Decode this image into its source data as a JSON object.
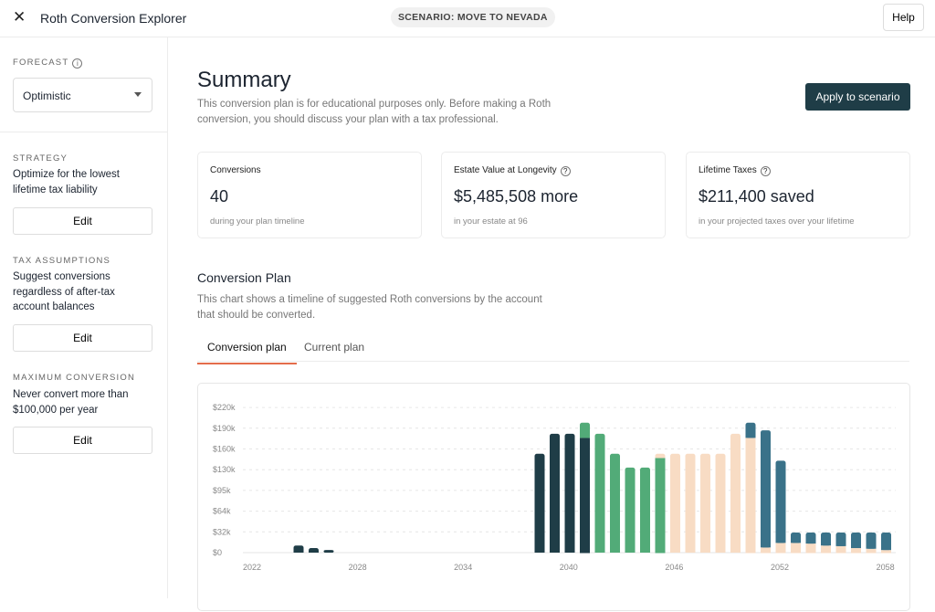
{
  "header": {
    "close_icon": "close-icon",
    "title": "Roth Conversion Explorer",
    "scenario": "SCENARIO: MOVE TO NEVADA",
    "help_label": "Help"
  },
  "sidebar": {
    "forecast_label": "FORECAST",
    "forecast_info_icon": "info-icon",
    "forecast_value": "Optimistic",
    "sections": [
      {
        "label": "STRATEGY",
        "text": "Optimize for the lowest lifetime tax liability",
        "button": "Edit"
      },
      {
        "label": "TAX ASSUMPTIONS",
        "text": "Suggest conversions regardless of after-tax account balances",
        "button": "Edit"
      },
      {
        "label": "MAXIMUM CONVERSION",
        "text": "Never convert more than $100,000 per year",
        "button": "Edit"
      }
    ]
  },
  "summary": {
    "title": "Summary",
    "description": "This conversion plan is for educational purposes only. Before making a Roth conversion, you should discuss your plan with a tax professional.",
    "apply_label": "Apply to scenario",
    "cards": [
      {
        "title": "Conversions",
        "value": "40",
        "sub": "during your plan timeline"
      },
      {
        "title": "Estate Value at Longevity",
        "value": "$5,485,508 more",
        "sub": "in your estate at 96"
      },
      {
        "title": "Lifetime Taxes",
        "value": "$211,400 saved",
        "sub": "in your projected taxes over your lifetime"
      }
    ]
  },
  "plan": {
    "title": "Conversion Plan",
    "description": "This chart shows a timeline of suggested Roth conversions by the account that should be converted.",
    "tabs": [
      {
        "label": "Conversion plan",
        "active": true
      },
      {
        "label": "Current plan",
        "active": false
      }
    ]
  },
  "chart_data": {
    "type": "bar",
    "stacked": true,
    "grid": true,
    "y_tick_labels": [
      "$0",
      "$32k",
      "$64k",
      "$95k",
      "$130k",
      "$160k",
      "$190k",
      "$220k"
    ],
    "y_tick_values": [
      0,
      32000,
      64000,
      95000,
      130000,
      160000,
      190000,
      220000
    ],
    "x_tick_labels": [
      "2022",
      "2028",
      "2034",
      "2040",
      "2046",
      "2052",
      "2058"
    ],
    "series": [
      {
        "color": "#1f3d47",
        "values": [
          11000,
          7000,
          4000,
          0,
          0,
          0,
          0,
          0,
          0,
          0,
          0,
          0,
          0,
          0,
          0,
          0,
          153000,
          182000,
          182000,
          176000,
          0,
          0,
          0,
          0,
          0,
          0,
          0,
          0,
          0,
          0,
          0,
          0,
          0,
          0,
          0,
          0,
          0,
          0,
          0,
          0
        ]
      },
      {
        "color": "#52ab78",
        "values": [
          0,
          0,
          0,
          0,
          0,
          0,
          0,
          0,
          0,
          0,
          0,
          0,
          0,
          0,
          0,
          0,
          0,
          0,
          0,
          22000,
          182000,
          153000,
          133000,
          133000,
          147000,
          0,
          0,
          0,
          0,
          0,
          0,
          0,
          0,
          0,
          0,
          0,
          0,
          0,
          0,
          0
        ]
      },
      {
        "color": "#f8dcc4",
        "values": [
          0,
          0,
          0,
          0,
          0,
          0,
          0,
          0,
          0,
          0,
          0,
          0,
          0,
          0,
          0,
          0,
          0,
          0,
          0,
          0,
          0,
          0,
          0,
          0,
          6000,
          153000,
          153000,
          153000,
          153000,
          182000,
          176000,
          8000,
          15000,
          15000,
          14000,
          11000,
          10000,
          7000,
          6000,
          4000
        ]
      },
      {
        "color": "#3a7289",
        "values": [
          0,
          0,
          0,
          0,
          0,
          0,
          0,
          0,
          0,
          0,
          0,
          0,
          0,
          0,
          0,
          0,
          0,
          0,
          0,
          0,
          0,
          0,
          0,
          0,
          0,
          0,
          0,
          0,
          0,
          0,
          22000,
          179000,
          128000,
          16000,
          17000,
          20000,
          21000,
          24000,
          25000,
          27000
        ]
      }
    ]
  }
}
